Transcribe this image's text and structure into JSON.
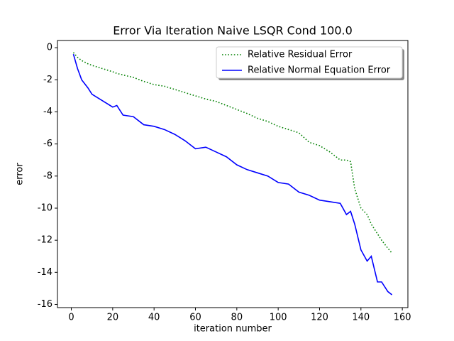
{
  "chart_data": {
    "type": "line",
    "title": "Error Via Iteration Naive LSQR Cond 100.0",
    "x_label": "iteration number",
    "y_label": "error",
    "x": [
      1,
      3,
      5,
      8,
      10,
      15,
      20,
      22,
      25,
      30,
      35,
      40,
      45,
      50,
      55,
      60,
      65,
      70,
      75,
      80,
      85,
      90,
      95,
      100,
      105,
      110,
      115,
      120,
      125,
      130,
      133,
      135,
      137,
      140,
      143,
      145,
      148,
      150,
      153,
      155
    ],
    "series": [
      {
        "name": "Relative Residual Error",
        "color": "#008000",
        "dash": "dotted",
        "values": [
          -0.3,
          -0.6,
          -0.8,
          -1.0,
          -1.1,
          -1.3,
          -1.5,
          -1.6,
          -1.7,
          -1.85,
          -2.1,
          -2.3,
          -2.4,
          -2.6,
          -2.8,
          -3.0,
          -3.2,
          -3.35,
          -3.6,
          -3.85,
          -4.1,
          -4.4,
          -4.6,
          -4.9,
          -5.1,
          -5.3,
          -5.9,
          -6.1,
          -6.5,
          -7.0,
          -7.0,
          -7.1,
          -8.8,
          -10.0,
          -10.4,
          -11.0,
          -11.6,
          -12.0,
          -12.5,
          -12.8
        ]
      },
      {
        "name": "Relative Normal Equation Error",
        "color": "#0000ff",
        "dash": "solid",
        "values": [
          -0.4,
          -1.3,
          -2.0,
          -2.5,
          -2.9,
          -3.3,
          -3.7,
          -3.6,
          -4.2,
          -4.3,
          -4.8,
          -4.9,
          -5.1,
          -5.4,
          -5.8,
          -6.3,
          -6.2,
          -6.5,
          -6.8,
          -7.3,
          -7.6,
          -7.8,
          -8.0,
          -8.4,
          -8.5,
          -9.0,
          -9.2,
          -9.5,
          -9.6,
          -9.7,
          -10.4,
          -10.2,
          -11.0,
          -12.6,
          -13.3,
          -13.0,
          -14.6,
          -14.6,
          -15.2,
          -15.4
        ]
      }
    ],
    "xlim": [
      -6.7,
      162.7
    ],
    "ylim": [
      -16.2,
      0.45
    ],
    "xticks": [
      0,
      20,
      40,
      60,
      80,
      100,
      120,
      140,
      160
    ],
    "yticks": [
      0,
      -2,
      -4,
      -6,
      -8,
      -10,
      -12,
      -14,
      -16
    ],
    "legend": "upper right",
    "grid": false
  }
}
